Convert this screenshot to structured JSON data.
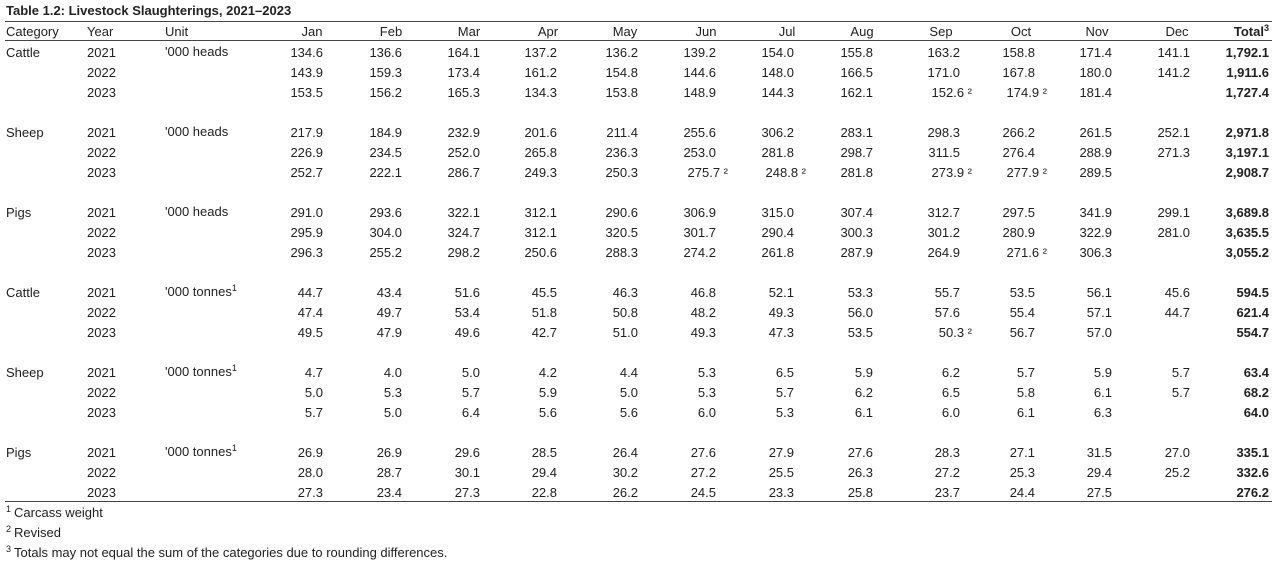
{
  "title": "Table 1.2: Livestock Slaughterings, 2021–2023",
  "headers": {
    "category": "Category",
    "year": "Year",
    "unit": "Unit",
    "months": [
      "Jan",
      "Feb",
      "Mar",
      "Apr",
      "May",
      "Jun",
      "Jul",
      "Aug",
      "Sep",
      "Oct",
      "Nov",
      "Dec"
    ],
    "total": "Total",
    "total_sup": "3"
  },
  "groups": [
    {
      "category": "Cattle",
      "unit": "'000 heads",
      "unit_sup": "",
      "rows": [
        {
          "year": "2021",
          "values": [
            "134.6",
            "136.6",
            "164.1",
            "137.2",
            "136.2",
            "139.2",
            "154.0",
            "155.8",
            "163.2",
            "158.8",
            "171.4",
            "141.1"
          ],
          "total": "1,792.1"
        },
        {
          "year": "2022",
          "values": [
            "143.9",
            "159.3",
            "173.4",
            "161.2",
            "154.8",
            "144.6",
            "148.0",
            "166.5",
            "171.0",
            "167.8",
            "180.0",
            "141.2"
          ],
          "total": "1,911.6"
        },
        {
          "year": "2023",
          "values": [
            "153.5",
            "156.2",
            "165.3",
            "134.3",
            "153.8",
            "148.9",
            "144.3",
            "162.1",
            "152.6 ²",
            "174.9 ²",
            "181.4",
            ""
          ],
          "total": "1,727.4"
        }
      ]
    },
    {
      "category": "Sheep",
      "unit": "'000 heads",
      "unit_sup": "",
      "rows": [
        {
          "year": "2021",
          "values": [
            "217.9",
            "184.9",
            "232.9",
            "201.6",
            "211.4",
            "255.6",
            "306.2",
            "283.1",
            "298.3",
            "266.2",
            "261.5",
            "252.1"
          ],
          "total": "2,971.8"
        },
        {
          "year": "2022",
          "values": [
            "226.9",
            "234.5",
            "252.0",
            "265.8",
            "236.3",
            "253.0",
            "281.8",
            "298.7",
            "311.5",
            "276.4",
            "288.9",
            "271.3"
          ],
          "total": "3,197.1"
        },
        {
          "year": "2023",
          "values": [
            "252.7",
            "222.1",
            "286.7",
            "249.3",
            "250.3",
            "275.7 ²",
            "248.8 ²",
            "281.8",
            "273.9 ²",
            "277.9 ²",
            "289.5",
            ""
          ],
          "total": "2,908.7"
        }
      ]
    },
    {
      "category": "Pigs",
      "unit": "'000 heads",
      "unit_sup": "",
      "rows": [
        {
          "year": "2021",
          "values": [
            "291.0",
            "293.6",
            "322.1",
            "312.1",
            "290.6",
            "306.9",
            "315.0",
            "307.4",
            "312.7",
            "297.5",
            "341.9",
            "299.1"
          ],
          "total": "3,689.8"
        },
        {
          "year": "2022",
          "values": [
            "295.9",
            "304.0",
            "324.7",
            "312.1",
            "320.5",
            "301.7",
            "290.4",
            "300.3",
            "301.2",
            "280.9",
            "322.9",
            "281.0"
          ],
          "total": "3,635.5"
        },
        {
          "year": "2023",
          "values": [
            "296.3",
            "255.2",
            "298.2",
            "250.6",
            "288.3",
            "274.2",
            "261.8",
            "287.9",
            "264.9",
            "271.6 ²",
            "306.3",
            ""
          ],
          "total": "3,055.2"
        }
      ]
    },
    {
      "category": "Cattle",
      "unit": "'000 tonnes",
      "unit_sup": "1",
      "rows": [
        {
          "year": "2021",
          "values": [
            "44.7",
            "43.4",
            "51.6",
            "45.5",
            "46.3",
            "46.8",
            "52.1",
            "53.3",
            "55.7",
            "53.5",
            "56.1",
            "45.6"
          ],
          "total": "594.5"
        },
        {
          "year": "2022",
          "values": [
            "47.4",
            "49.7",
            "53.4",
            "51.8",
            "50.8",
            "48.2",
            "49.3",
            "56.0",
            "57.6",
            "55.4",
            "57.1",
            "44.7"
          ],
          "total": "621.4"
        },
        {
          "year": "2023",
          "values": [
            "49.5",
            "47.9",
            "49.6",
            "42.7",
            "51.0",
            "49.3",
            "47.3",
            "53.5",
            "50.3 ²",
            "56.7",
            "57.0",
            ""
          ],
          "total": "554.7"
        }
      ]
    },
    {
      "category": "Sheep",
      "unit": "'000 tonnes",
      "unit_sup": "1",
      "rows": [
        {
          "year": "2021",
          "values": [
            "4.7",
            "4.0",
            "5.0",
            "4.2",
            "4.4",
            "5.3",
            "6.5",
            "5.9",
            "6.2",
            "5.7",
            "5.9",
            "5.7"
          ],
          "total": "63.4"
        },
        {
          "year": "2022",
          "values": [
            "5.0",
            "5.3",
            "5.7",
            "5.9",
            "5.0",
            "5.3",
            "5.7",
            "6.2",
            "6.5",
            "5.8",
            "6.1",
            "5.7"
          ],
          "total": "68.2"
        },
        {
          "year": "2023",
          "values": [
            "5.7",
            "5.0",
            "6.4",
            "5.6",
            "5.6",
            "6.0",
            "5.3",
            "6.1",
            "6.0",
            "6.1",
            "6.3",
            ""
          ],
          "total": "64.0"
        }
      ]
    },
    {
      "category": "Pigs",
      "unit": "'000 tonnes",
      "unit_sup": "1",
      "rows": [
        {
          "year": "2021",
          "values": [
            "26.9",
            "26.9",
            "29.6",
            "28.5",
            "26.4",
            "27.6",
            "27.9",
            "27.6",
            "28.3",
            "27.1",
            "31.5",
            "27.0"
          ],
          "total": "335.1"
        },
        {
          "year": "2022",
          "values": [
            "28.0",
            "28.7",
            "30.1",
            "29.4",
            "30.2",
            "27.2",
            "25.5",
            "26.3",
            "27.2",
            "25.3",
            "29.4",
            "25.2"
          ],
          "total": "332.6"
        },
        {
          "year": "2023",
          "values": [
            "27.3",
            "23.4",
            "27.3",
            "22.8",
            "26.2",
            "24.5",
            "23.3",
            "25.8",
            "23.7",
            "24.4",
            "27.5",
            ""
          ],
          "total": "276.2"
        }
      ]
    }
  ],
  "footnotes": [
    {
      "sup": "1",
      "text": "Carcass weight"
    },
    {
      "sup": "2",
      "text": "Revised"
    },
    {
      "sup": "3",
      "text": "Totals may not equal the sum of the categories due to rounding differences."
    }
  ]
}
